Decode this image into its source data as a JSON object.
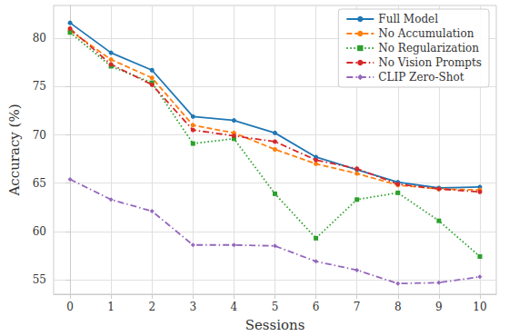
{
  "chart_data": {
    "type": "line",
    "x_label": "Sessions",
    "y_label": "Accuracy (%)",
    "x": [
      0,
      1,
      2,
      3,
      4,
      5,
      6,
      7,
      8,
      9,
      10
    ],
    "xlim": [
      -0.4,
      10.4
    ],
    "xticks": [
      0,
      1,
      2,
      3,
      4,
      5,
      6,
      7,
      8,
      9,
      10
    ],
    "ylim": [
      53.5,
      83.4
    ],
    "yticks": [
      55,
      60,
      65,
      70,
      75,
      80
    ],
    "grid": true,
    "legend": "upper right",
    "series": [
      {
        "name": "Full Model",
        "color": "#1f77b4",
        "line_style": "solid",
        "marker": "circle",
        "values": [
          81.6,
          78.5,
          76.7,
          71.9,
          71.5,
          70.2,
          67.7,
          66.4,
          65.1,
          64.5,
          64.6
        ]
      },
      {
        "name": "No Accumulation",
        "color": "#ff7f0e",
        "line_style": "dashed",
        "marker": "circle",
        "values": [
          80.8,
          77.8,
          75.9,
          71.0,
          70.2,
          68.5,
          67.0,
          66.0,
          64.8,
          64.4,
          64.3
        ]
      },
      {
        "name": "No Regularization",
        "color": "#2ca02c",
        "line_style": "dotted",
        "marker": "square",
        "values": [
          80.6,
          77.1,
          75.4,
          69.1,
          69.6,
          63.9,
          59.3,
          63.3,
          64.0,
          61.1,
          57.4
        ]
      },
      {
        "name": "No Vision Prompts",
        "color": "#d62728",
        "line_style": "dashdot",
        "marker": "circle",
        "values": [
          81.0,
          77.3,
          75.2,
          70.5,
          69.9,
          69.3,
          67.4,
          66.5,
          64.9,
          64.4,
          64.1
        ]
      },
      {
        "name": "CLIP Zero-Shot",
        "color": "#9467bd",
        "line_style": "dashdot",
        "marker": "diamond",
        "values": [
          65.4,
          63.3,
          62.1,
          58.6,
          58.6,
          58.5,
          56.9,
          56.0,
          54.6,
          54.7,
          55.3
        ]
      }
    ]
  }
}
